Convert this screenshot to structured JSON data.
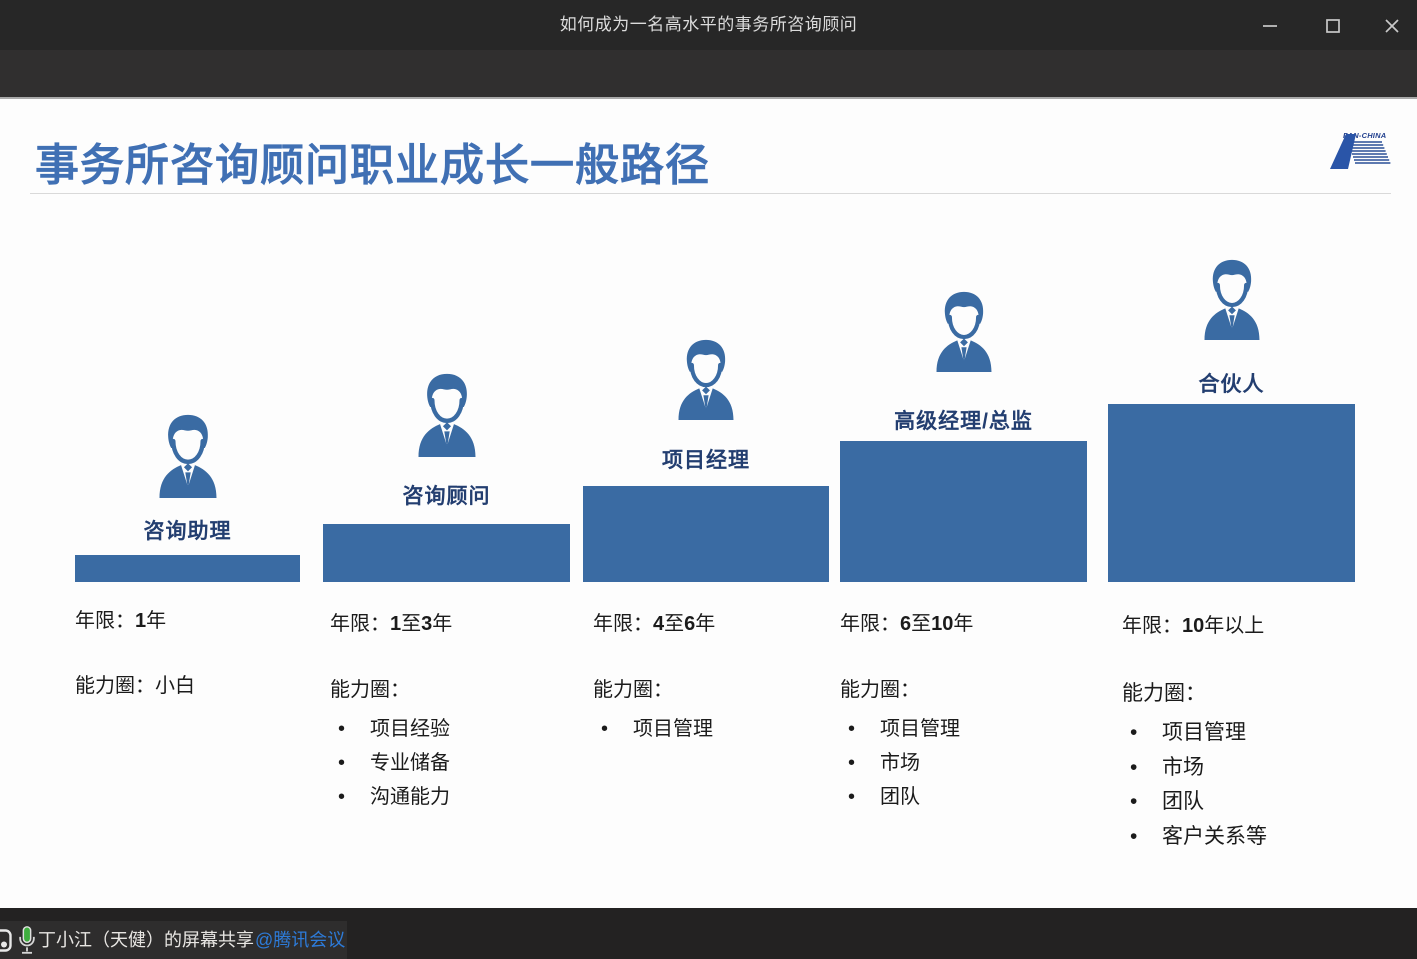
{
  "window": {
    "title": "如何成为一名高水平的事务所咨询顾问",
    "controls": {
      "minimize": "minimize",
      "maximize": "maximize",
      "close": "close"
    }
  },
  "slide": {
    "title": "事务所咨询顾问职业成长一般路径",
    "logo": {
      "text": "PAN-CHINA"
    },
    "stages": [
      {
        "label": "咨询助理",
        "years": [
          {
            "text": "年限：",
            "bold": false
          },
          {
            "text": "1",
            "bold": true
          },
          {
            "text": "年",
            "bold": false
          }
        ],
        "ability_title": "能力圈：",
        "ability_inline": "小白",
        "bullets": []
      },
      {
        "label": "咨询顾问",
        "years": [
          {
            "text": "年限：",
            "bold": false
          },
          {
            "text": "1",
            "bold": true
          },
          {
            "text": "至",
            "bold": false
          },
          {
            "text": "3",
            "bold": true
          },
          {
            "text": "年",
            "bold": false
          }
        ],
        "ability_title": "能力圈：",
        "ability_inline": "",
        "bullets": [
          "项目经验",
          "专业储备",
          "沟通能力"
        ]
      },
      {
        "label": "项目经理",
        "years": [
          {
            "text": "年限：",
            "bold": false
          },
          {
            "text": "4",
            "bold": true
          },
          {
            "text": "至",
            "bold": false
          },
          {
            "text": "6",
            "bold": true
          },
          {
            "text": "年",
            "bold": false
          }
        ],
        "ability_title": "能力圈：",
        "ability_inline": "",
        "bullets": [
          "项目管理"
        ]
      },
      {
        "label": "高级经理/总监",
        "years": [
          {
            "text": "年限：",
            "bold": false
          },
          {
            "text": "6",
            "bold": true
          },
          {
            "text": "至",
            "bold": false
          },
          {
            "text": "10",
            "bold": true
          },
          {
            "text": "年",
            "bold": false
          }
        ],
        "ability_title": "能力圈：",
        "ability_inline": "",
        "bullets": [
          "项目管理",
          "市场",
          "团队"
        ]
      },
      {
        "label": "合伙人",
        "years": [
          {
            "text": "年限：",
            "bold": false
          },
          {
            "text": "10",
            "bold": true
          },
          {
            "text": "年以上",
            "bold": false
          }
        ],
        "ability_title": "能力圈：",
        "ability_inline": "",
        "bullets": [
          "项目管理",
          "市场",
          "团队",
          "客户关系等"
        ]
      }
    ]
  },
  "share_bar": {
    "presenter_text": "丁小江（天健）的屏幕共享",
    "link_text": "@腾讯会议"
  },
  "colors": {
    "bar_blue": "#3a6ba3",
    "slide_title_blue": "#4070b4",
    "stage_label_navy": "#233e70",
    "link_blue": "#2d7bd9",
    "mic_green": "#3fae3f",
    "titlebar_bg": "#272727",
    "sharebar_bg": "#232222"
  }
}
